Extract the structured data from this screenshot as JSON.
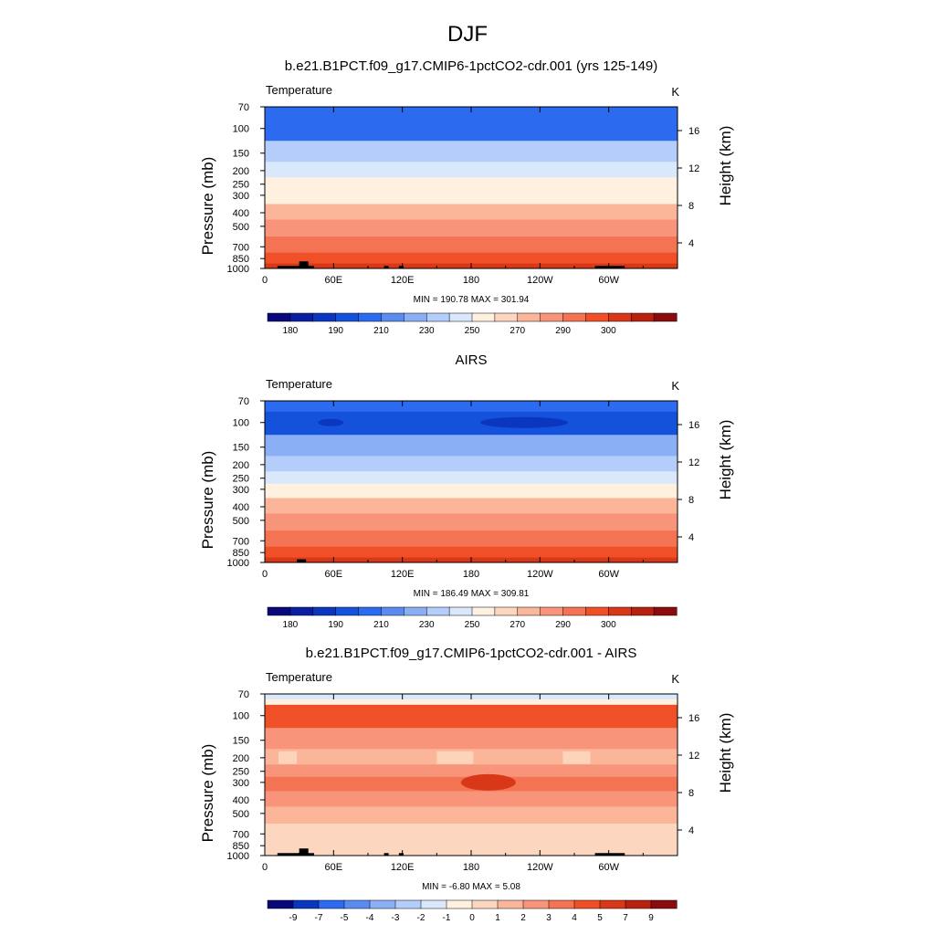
{
  "figure": {
    "title": "DJF"
  },
  "colors": {
    "temperature_palette": [
      "#08087a",
      "#0a1fa0",
      "#0a36c0",
      "#1452dc",
      "#2c6af0",
      "#5a8cf0",
      "#8aaff5",
      "#b4cdfa",
      "#dae8fc",
      "#fff0e0",
      "#fdd6c0",
      "#fbb69a",
      "#f8947a",
      "#f47352",
      "#f05028",
      "#d93818",
      "#b82010",
      "#8a0c0c"
    ],
    "difference_palette": [
      "#08087a",
      "#0a36c0",
      "#2c6af0",
      "#5a8cf0",
      "#8aaff5",
      "#b4cdfa",
      "#dae8fc",
      "#fff0e0",
      "#fdd6c0",
      "#fbb69a",
      "#f8947a",
      "#f47352",
      "#f05028",
      "#d93818",
      "#b82010",
      "#8a0c0c"
    ],
    "topography": "#000000"
  },
  "chart_data": [
    {
      "type": "heatmap",
      "title": "b.e21.B1PCT.f09_g17.CMIP6-1pctCO2-cdr.001 (yrs 125-149)",
      "left_label": "Temperature",
      "right_label": "K",
      "ylabel": "Pressure (mb)",
      "ylabel_right": "Height (km)",
      "xticks": [
        "0",
        "60E",
        "120E",
        "180",
        "120W",
        "60W"
      ],
      "yticks": [
        "70",
        "100",
        "150",
        "200",
        "250",
        "300",
        "400",
        "500",
        "700",
        "850",
        "1000"
      ],
      "yticks_right": [
        "16",
        "12",
        "8",
        "4"
      ],
      "xlim": [
        0,
        360
      ],
      "ylim": [
        1000,
        70
      ],
      "yscale": "log",
      "min_max_text": "MIN = 190.78  MAX = 301.94",
      "min": 190.78,
      "max": 301.94,
      "colorbar_labels": [
        "180",
        "190",
        "210",
        "230",
        "250",
        "270",
        "290",
        "300"
      ],
      "level_profile": [
        {
          "pressure": 70,
          "value": 196
        },
        {
          "pressure": 100,
          "value": 198
        },
        {
          "pressure": 150,
          "value": 210
        },
        {
          "pressure": 200,
          "value": 220
        },
        {
          "pressure": 250,
          "value": 230
        },
        {
          "pressure": 300,
          "value": 238
        },
        {
          "pressure": 400,
          "value": 252
        },
        {
          "pressure": 500,
          "value": 262
        },
        {
          "pressure": 700,
          "value": 275
        },
        {
          "pressure": 850,
          "value": 284
        },
        {
          "pressure": 1000,
          "value": 294
        }
      ]
    },
    {
      "type": "heatmap",
      "title": "AIRS",
      "left_label": "Temperature",
      "right_label": "K",
      "ylabel": "Pressure (mb)",
      "ylabel_right": "Height (km)",
      "xticks": [
        "0",
        "60E",
        "120E",
        "180",
        "120W",
        "60W"
      ],
      "yticks": [
        "70",
        "100",
        "150",
        "200",
        "250",
        "300",
        "400",
        "500",
        "700",
        "850",
        "1000"
      ],
      "yticks_right": [
        "16",
        "12",
        "8",
        "4"
      ],
      "xlim": [
        0,
        360
      ],
      "ylim": [
        1000,
        70
      ],
      "yscale": "log",
      "min_max_text": "MIN = 186.49  MAX = 309.81",
      "min": 186.49,
      "max": 309.81,
      "colorbar_labels": [
        "180",
        "190",
        "210",
        "230",
        "250",
        "270",
        "290",
        "300"
      ],
      "level_profile": [
        {
          "pressure": 70,
          "value": 196
        },
        {
          "pressure": 100,
          "value": 193
        },
        {
          "pressure": 150,
          "value": 206
        },
        {
          "pressure": 200,
          "value": 216
        },
        {
          "pressure": 250,
          "value": 226
        },
        {
          "pressure": 300,
          "value": 236
        },
        {
          "pressure": 400,
          "value": 250
        },
        {
          "pressure": 500,
          "value": 260
        },
        {
          "pressure": 700,
          "value": 274
        },
        {
          "pressure": 850,
          "value": 283
        },
        {
          "pressure": 1000,
          "value": 292
        }
      ]
    },
    {
      "type": "heatmap",
      "title": "b.e21.B1PCT.f09_g17.CMIP6-1pctCO2-cdr.001 - AIRS",
      "left_label": "Temperature",
      "right_label": "K",
      "ylabel": "Pressure (mb)",
      "ylabel_right": "Height (km)",
      "xticks": [
        "0",
        "60E",
        "120E",
        "180",
        "120W",
        "60W"
      ],
      "yticks": [
        "70",
        "100",
        "150",
        "200",
        "250",
        "300",
        "400",
        "500",
        "700",
        "850",
        "1000"
      ],
      "yticks_right": [
        "16",
        "12",
        "8",
        "4"
      ],
      "xlim": [
        0,
        360
      ],
      "ylim": [
        1000,
        70
      ],
      "yscale": "log",
      "min_max_text": "MIN =  -6.80  MAX =   5.08",
      "min": -6.8,
      "max": 5.08,
      "colorbar_labels": [
        "-9",
        "-7",
        "-5",
        "-4",
        "-3",
        "-2",
        "-1",
        "0",
        "1",
        "2",
        "3",
        "4",
        "5",
        "7",
        "9"
      ],
      "level_profile": [
        {
          "pressure": 70,
          "value": -0.5
        },
        {
          "pressure": 100,
          "value": 4.2
        },
        {
          "pressure": 150,
          "value": 2.2
        },
        {
          "pressure": 200,
          "value": 1.5
        },
        {
          "pressure": 250,
          "value": 2.2
        },
        {
          "pressure": 300,
          "value": 3.4
        },
        {
          "pressure": 400,
          "value": 2.0
        },
        {
          "pressure": 500,
          "value": 1.4
        },
        {
          "pressure": 700,
          "value": 0.6
        },
        {
          "pressure": 850,
          "value": 0.4
        },
        {
          "pressure": 1000,
          "value": 0.3
        }
      ]
    }
  ]
}
